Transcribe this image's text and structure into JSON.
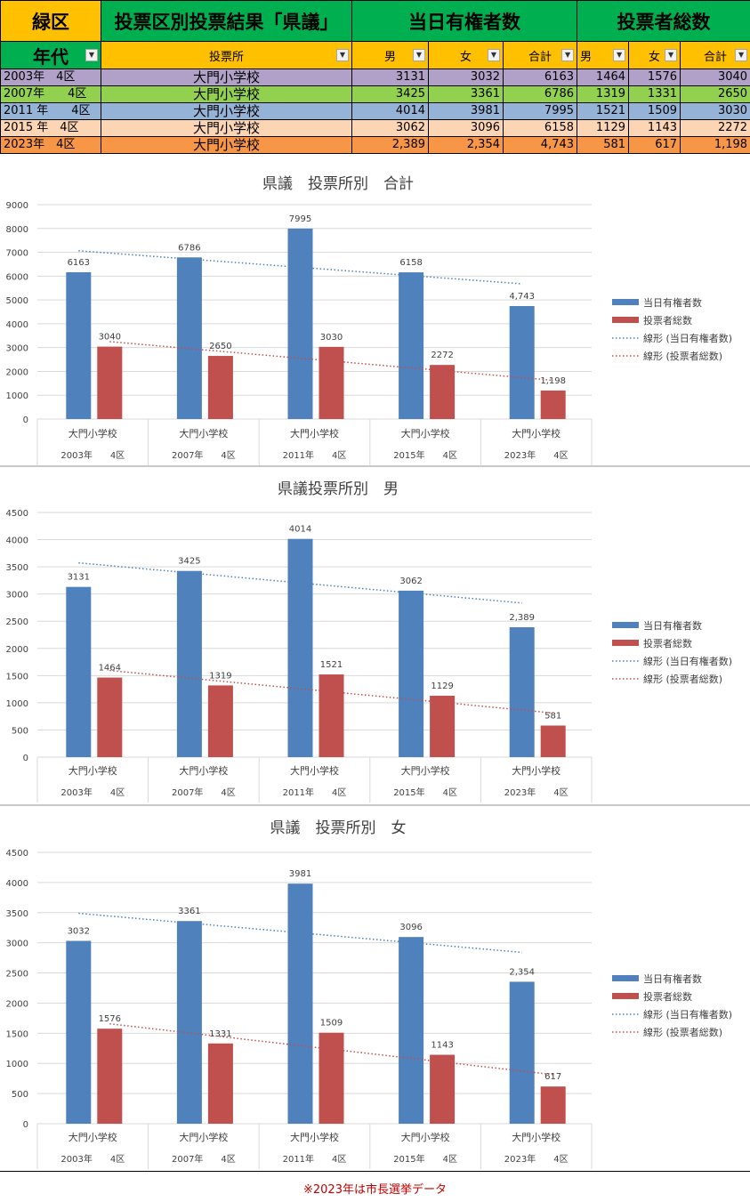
{
  "colors": {
    "header_green": "#00b050",
    "header_gold": "#ffc000",
    "bar_blue": "#4f81bd",
    "bar_red": "#c0504d",
    "note_red": "#c00000"
  },
  "table": {
    "ward": "緑区",
    "title": "投票区別投票結果「県議」",
    "group_electors": "当日有権者数",
    "group_voters": "投票者総数",
    "col_year": "年代",
    "col_station": "投票所",
    "col_male": "男",
    "col_female": "女",
    "col_total": "合計",
    "filter_icon": "dropdown-filter-icon",
    "rows": [
      {
        "year": "2003年　4区",
        "station": "大門小学校",
        "em": "3131",
        "ef": "3032",
        "et": "6163",
        "vm": "1464",
        "vf": "1576",
        "vt": "3040",
        "bg": "#b1a0c7"
      },
      {
        "year": "2007年　　4区",
        "station": "大門小学校",
        "em": "3425",
        "ef": "3361",
        "et": "6786",
        "vm": "1319",
        "vf": "1331",
        "vt": "2650",
        "bg": "#92d050"
      },
      {
        "year": "2011 年　　4区",
        "station": "大門小学校",
        "em": "4014",
        "ef": "3981",
        "et": "7995",
        "vm": "1521",
        "vf": "1509",
        "vt": "3030",
        "bg": "#95b3d7"
      },
      {
        "year": "2015 年　4区",
        "station": "大門小学校",
        "em": "3062",
        "ef": "3096",
        "et": "6158",
        "vm": "1129",
        "vf": "1143",
        "vt": "2272",
        "bg": "#fcd5b4"
      },
      {
        "year": "2023年　4区",
        "station": "大門小学校",
        "em": "2,389",
        "ef": "2,354",
        "et": "4,743",
        "vm": "581",
        "vf": "617",
        "vt": "1,198",
        "bg": "#f79646"
      }
    ]
  },
  "chart_data": [
    {
      "type": "bar",
      "title": "県議　投票所別　合計",
      "categories": [
        "大門小学校",
        "大門小学校",
        "大門小学校",
        "大門小学校",
        "大門小学校"
      ],
      "category_groups": [
        "2003年　　4区",
        "2007年　　4区",
        "2011年　　4区",
        "2015年　　4区",
        "2023年　　4区"
      ],
      "series": [
        {
          "name": "当日有権者数",
          "values": [
            6163,
            6786,
            7995,
            6158,
            4743
          ],
          "labels": [
            "6163",
            "6786",
            "7995",
            "6158",
            "4,743"
          ]
        },
        {
          "name": "投票者総数",
          "values": [
            3040,
            2650,
            3030,
            2272,
            1198
          ],
          "labels": [
            "3040",
            "2650",
            "3030",
            "2272",
            "1,198"
          ]
        }
      ],
      "trendlines": [
        "線形 (当日有権者数)",
        "線形 (投票者総数)"
      ],
      "ylim": [
        0,
        9000
      ],
      "yticks": [
        0,
        1000,
        2000,
        3000,
        4000,
        5000,
        6000,
        7000,
        8000,
        9000
      ],
      "legend": "right",
      "grid": true
    },
    {
      "type": "bar",
      "title": "県議投票所別　男",
      "categories": [
        "大門小学校",
        "大門小学校",
        "大門小学校",
        "大門小学校",
        "大門小学校"
      ],
      "category_groups": [
        "2003年　　4区",
        "2007年　　4区",
        "2011年　　4区",
        "2015年　　4区",
        "2023年　　4区"
      ],
      "series": [
        {
          "name": "当日有権者数",
          "values": [
            3131,
            3425,
            4014,
            3062,
            2389
          ],
          "labels": [
            "3131",
            "3425",
            "4014",
            "3062",
            "2,389"
          ]
        },
        {
          "name": "投票者総数",
          "values": [
            1464,
            1319,
            1521,
            1129,
            581
          ],
          "labels": [
            "1464",
            "1319",
            "1521",
            "1129",
            "581"
          ]
        }
      ],
      "trendlines": [
        "線形 (当日有権者数)",
        "線形 (投票者総数)"
      ],
      "ylim": [
        0,
        4500
      ],
      "yticks": [
        0,
        500,
        1000,
        1500,
        2000,
        2500,
        3000,
        3500,
        4000,
        4500
      ],
      "legend": "right",
      "grid": true
    },
    {
      "type": "bar",
      "title": "県議　投票所別　女",
      "categories": [
        "大門小学校",
        "大門小学校",
        "大門小学校",
        "大門小学校",
        "大門小学校"
      ],
      "category_groups": [
        "2003年　　4区",
        "2007年　　4区",
        "2011年　　4区",
        "2015年　　4区",
        "2023年　　4区"
      ],
      "series": [
        {
          "name": "当日有権者数",
          "values": [
            3032,
            3361,
            3981,
            3096,
            2354
          ],
          "labels": [
            "3032",
            "3361",
            "3981",
            "3096",
            "2,354"
          ]
        },
        {
          "name": "投票者総数",
          "values": [
            1576,
            1331,
            1509,
            1143,
            617
          ],
          "labels": [
            "1576",
            "1331",
            "1509",
            "1143",
            "617"
          ]
        }
      ],
      "trendlines": [
        "線形 (当日有権者数)",
        "線形 (投票者総数)"
      ],
      "ylim": [
        0,
        4500
      ],
      "yticks": [
        0,
        500,
        1000,
        1500,
        2000,
        2500,
        3000,
        3500,
        4000,
        4500
      ],
      "legend": "right",
      "grid": true
    }
  ],
  "footnote": "※2023年は市長選挙データ"
}
